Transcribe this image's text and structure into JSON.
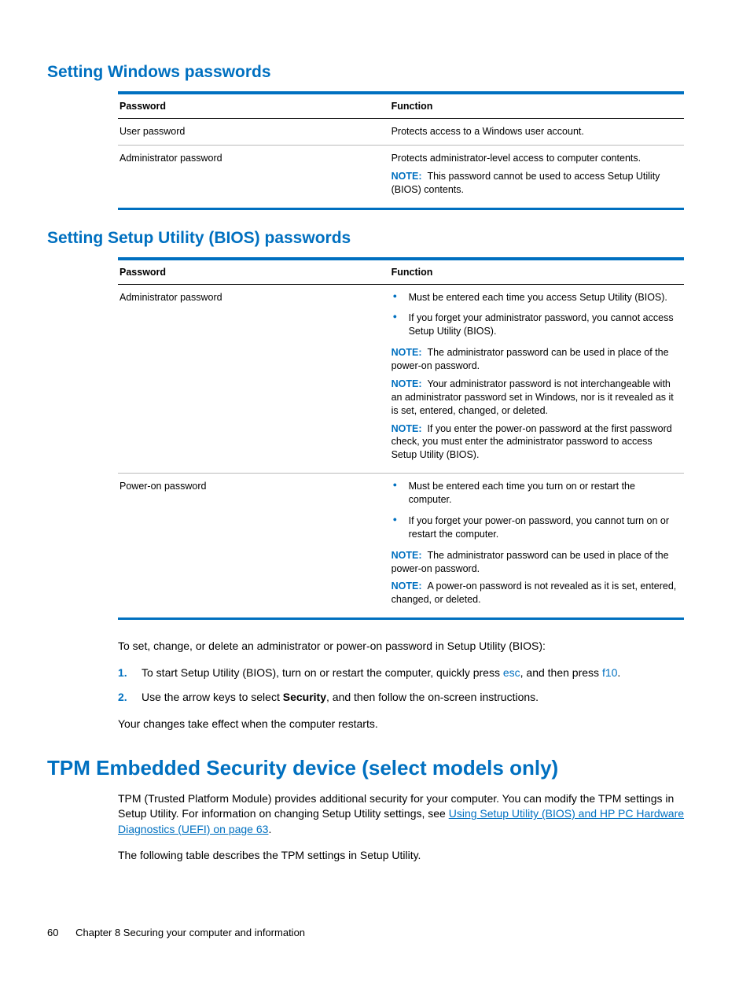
{
  "colors": {
    "accent": "#0070c0",
    "text": "#000000",
    "rule_light": "#bbbbbb",
    "rule_heavy": "#0070c0",
    "background": "#ffffff"
  },
  "section1": {
    "heading": "Setting Windows passwords",
    "table": {
      "columns": [
        "Password",
        "Function"
      ],
      "rows": [
        {
          "password": "User password",
          "function": "Protects access to a Windows user account."
        },
        {
          "password": "Administrator password",
          "function": "Protects administrator-level access to computer contents.",
          "note_label": "NOTE:",
          "note_text": "This password cannot be used to access Setup Utility (BIOS) contents."
        }
      ]
    }
  },
  "section2": {
    "heading": "Setting Setup Utility (BIOS) passwords",
    "table": {
      "columns": [
        "Password",
        "Function"
      ],
      "rows": [
        {
          "password": "Administrator password",
          "bullets": [
            "Must be entered each time you access Setup Utility (BIOS).",
            "If you forget your administrator password, you cannot access Setup Utility (BIOS)."
          ],
          "notes": [
            {
              "label": "NOTE:",
              "text": "The administrator password can be used in place of the power-on password."
            },
            {
              "label": "NOTE:",
              "text": "Your administrator password is not interchangeable with an administrator password set in Windows, nor is it revealed as it is set, entered, changed, or deleted."
            },
            {
              "label": "NOTE:",
              "text": "If you enter the power-on password at the first password check, you must enter the administrator password to access Setup Utility (BIOS)."
            }
          ]
        },
        {
          "password": "Power-on password",
          "bullets": [
            "Must be entered each time you turn on or restart the computer.",
            "If you forget your power-on password, you cannot turn on or restart the computer."
          ],
          "notes": [
            {
              "label": "NOTE:",
              "text": "The administrator password can be used in place of the power-on password."
            },
            {
              "label": "NOTE:",
              "text": "A power-on password is not revealed as it is set, entered, changed, or deleted."
            }
          ]
        }
      ]
    },
    "intro_para": "To set, change, or delete an administrator or power-on password in Setup Utility (BIOS):",
    "steps": [
      {
        "num": "1.",
        "pre": "To start Setup Utility (BIOS), turn on or restart the computer, quickly press ",
        "key1": "esc",
        "mid": ", and then press ",
        "key2": "f10",
        "post": "."
      },
      {
        "num": "2.",
        "pre": "Use the arrow keys to select ",
        "bold": "Security",
        "post": ", and then follow the on-screen instructions."
      }
    ],
    "closing_para": "Your changes take effect when the computer restarts."
  },
  "section3": {
    "heading": "TPM Embedded Security device (select models only)",
    "para1_pre": "TPM (Trusted Platform Module) provides additional security for your computer. You can modify the TPM settings in Setup Utility. For information on changing Setup Utility settings, see ",
    "para1_link": "Using Setup Utility (BIOS) and HP PC Hardware Diagnostics (UEFI) on page 63",
    "para1_post": ".",
    "para2": "The following table describes the TPM settings in Setup Utility."
  },
  "footer": {
    "page_number": "60",
    "chapter": "Chapter 8   Securing your computer and information"
  }
}
